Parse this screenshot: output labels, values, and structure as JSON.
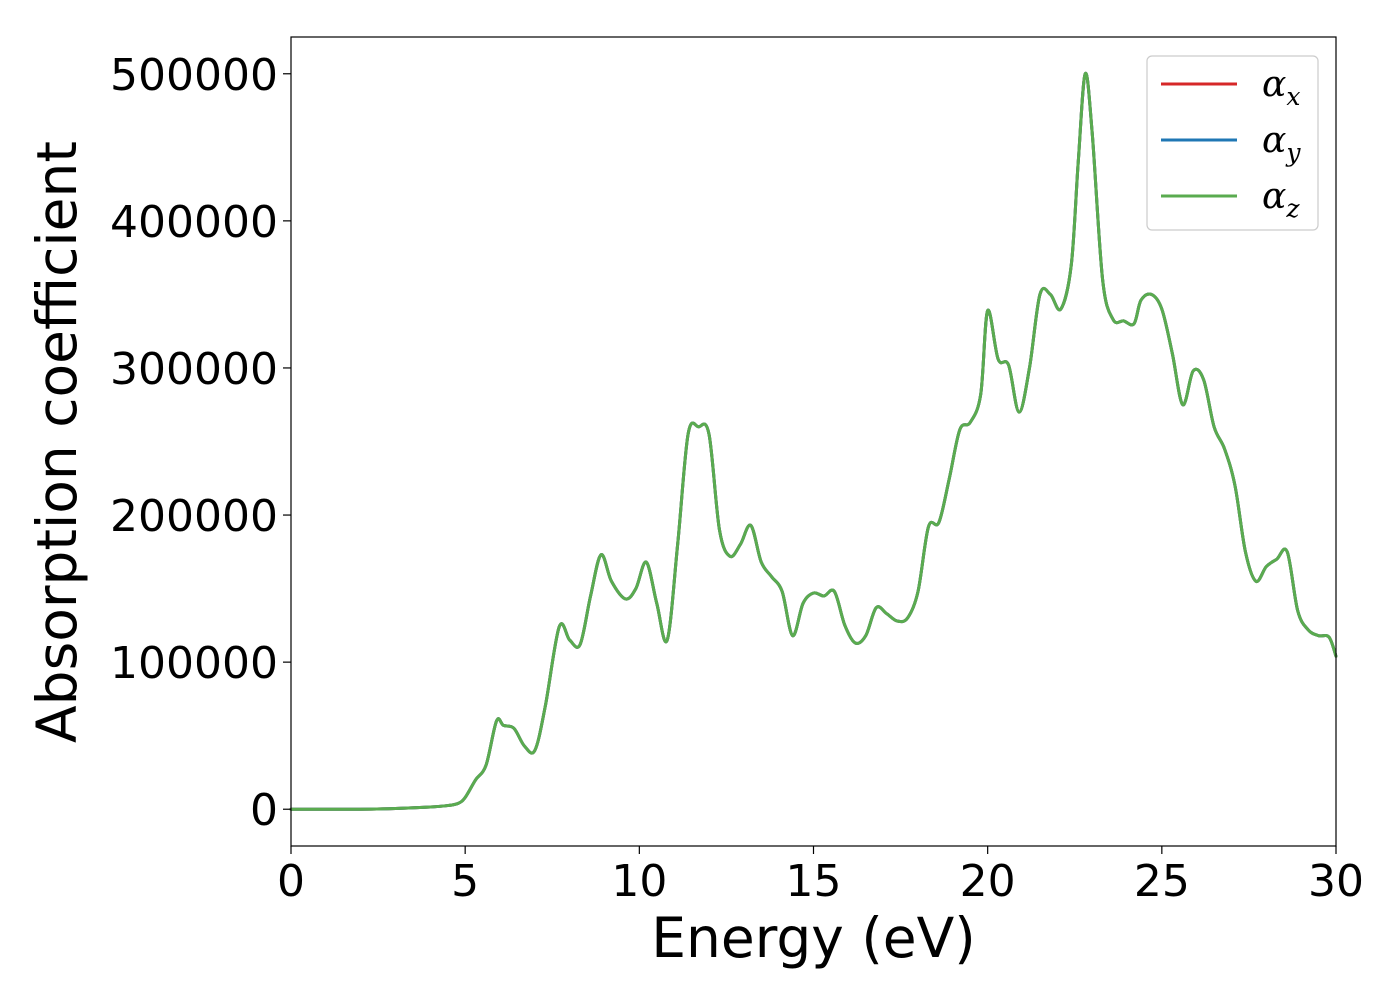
{
  "chart_data": {
    "type": "line",
    "title": "",
    "xlabel": "Energy (eV)",
    "ylabel": "Absorption coefficient",
    "xlim": [
      0,
      30
    ],
    "ylim": [
      -25000,
      525000
    ],
    "xticks": [
      0,
      5,
      10,
      15,
      20,
      25,
      30
    ],
    "xtick_labels": [
      "0",
      "5",
      "10",
      "15",
      "20",
      "25",
      "30"
    ],
    "yticks": [
      0,
      100000,
      200000,
      300000,
      400000,
      500000
    ],
    "ytick_labels": [
      "0",
      "100000",
      "200000",
      "300000",
      "400000",
      "500000"
    ],
    "grid": false,
    "legend_position": "top-right",
    "x": [
      0,
      1,
      2,
      3,
      4,
      4.5,
      4.8,
      5,
      5.3,
      5.6,
      5.9,
      6.1,
      6.4,
      6.7,
      7.0,
      7.3,
      7.7,
      8.0,
      8.3,
      8.6,
      8.9,
      9.2,
      9.6,
      9.9,
      10.2,
      10.5,
      10.8,
      11.1,
      11.4,
      11.7,
      12.0,
      12.3,
      12.6,
      12.9,
      13.2,
      13.5,
      13.8,
      14.1,
      14.4,
      14.7,
      15.0,
      15.3,
      15.6,
      15.9,
      16.2,
      16.5,
      16.8,
      17.1,
      17.4,
      17.7,
      18.0,
      18.3,
      18.6,
      18.9,
      19.2,
      19.5,
      19.8,
      20.0,
      20.3,
      20.6,
      20.9,
      21.2,
      21.5,
      21.8,
      22.1,
      22.4,
      22.6,
      22.8,
      23.0,
      23.3,
      23.6,
      23.9,
      24.2,
      24.4,
      24.7,
      25.0,
      25.3,
      25.6,
      25.9,
      26.2,
      26.5,
      26.8,
      27.1,
      27.4,
      27.7,
      28.0,
      28.3,
      28.6,
      28.9,
      29.2,
      29.5,
      29.8,
      30.0
    ],
    "series": [
      {
        "name": "x",
        "color": "#d62728",
        "values": [
          0,
          0,
          0,
          500,
          1500,
          2500,
          4000,
          8000,
          20000,
          30000,
          60000,
          57000,
          55000,
          43000,
          40000,
          70000,
          124000,
          115000,
          112000,
          145000,
          173000,
          155000,
          143000,
          150000,
          168000,
          140000,
          115000,
          180000,
          255000,
          260000,
          255000,
          190000,
          172000,
          180000,
          193000,
          168000,
          158000,
          148000,
          118000,
          140000,
          147000,
          145000,
          148000,
          125000,
          113000,
          118000,
          137000,
          133000,
          128000,
          130000,
          148000,
          192000,
          195000,
          225000,
          258000,
          263000,
          282000,
          339000,
          306000,
          302000,
          270000,
          300000,
          350000,
          350000,
          340000,
          370000,
          440000,
          500000,
          460000,
          360000,
          333000,
          332000,
          330000,
          346000,
          350000,
          340000,
          310000,
          275000,
          298000,
          292000,
          260000,
          245000,
          220000,
          175000,
          155000,
          165000,
          170000,
          175000,
          135000,
          122000,
          118000,
          117000,
          104000
        ]
      },
      {
        "name": "y",
        "color": "#1f77b4",
        "values": [
          0,
          0,
          0,
          500,
          1500,
          2500,
          4000,
          8000,
          20000,
          30000,
          60000,
          57000,
          55000,
          43000,
          40000,
          70000,
          124000,
          115000,
          112000,
          145000,
          173000,
          155000,
          143000,
          150000,
          168000,
          140000,
          115000,
          180000,
          255000,
          260000,
          255000,
          190000,
          172000,
          180000,
          193000,
          168000,
          158000,
          148000,
          118000,
          140000,
          147000,
          145000,
          148000,
          125000,
          113000,
          118000,
          137000,
          133000,
          128000,
          130000,
          148000,
          192000,
          195000,
          225000,
          258000,
          263000,
          282000,
          339000,
          306000,
          302000,
          270000,
          300000,
          350000,
          350000,
          340000,
          370000,
          440000,
          500000,
          460000,
          360000,
          333000,
          332000,
          330000,
          346000,
          350000,
          340000,
          310000,
          275000,
          298000,
          292000,
          260000,
          245000,
          220000,
          175000,
          155000,
          165000,
          170000,
          175000,
          135000,
          122000,
          118000,
          117000,
          104000
        ]
      },
      {
        "name": "z",
        "color": "#5aab4f",
        "values": [
          0,
          0,
          0,
          500,
          1500,
          2500,
          4000,
          8000,
          20000,
          30000,
          60000,
          57000,
          55000,
          43000,
          40000,
          70000,
          124000,
          115000,
          112000,
          145000,
          173000,
          155000,
          143000,
          150000,
          168000,
          140000,
          115000,
          180000,
          255000,
          260000,
          255000,
          190000,
          172000,
          180000,
          193000,
          168000,
          158000,
          148000,
          118000,
          140000,
          147000,
          145000,
          148000,
          125000,
          113000,
          118000,
          137000,
          133000,
          128000,
          130000,
          148000,
          192000,
          195000,
          225000,
          258000,
          263000,
          282000,
          339000,
          306000,
          302000,
          270000,
          300000,
          350000,
          350000,
          340000,
          370000,
          440000,
          500000,
          460000,
          360000,
          333000,
          332000,
          330000,
          346000,
          350000,
          340000,
          310000,
          275000,
          298000,
          292000,
          260000,
          245000,
          220000,
          175000,
          155000,
          165000,
          170000,
          175000,
          135000,
          122000,
          118000,
          117000,
          104000
        ]
      }
    ],
    "legend": [
      {
        "symbol": "α",
        "sub": "x",
        "color": "#d62728"
      },
      {
        "symbol": "α",
        "sub": "y",
        "color": "#1f77b4"
      },
      {
        "symbol": "α",
        "sub": "z",
        "color": "#5aab4f"
      }
    ]
  }
}
